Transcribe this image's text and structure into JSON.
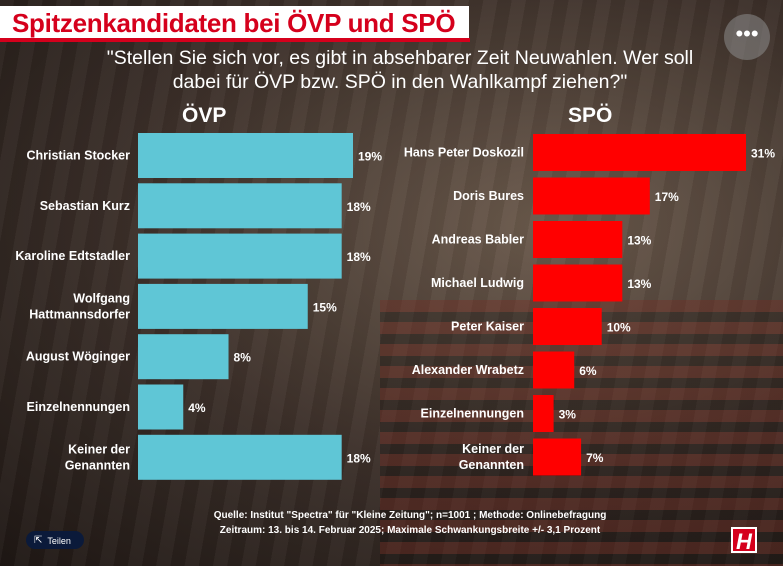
{
  "title": "Spitzenkandidaten bei ÖVP und SPÖ",
  "question_line1": "\"Stellen Sie sich vor, es gibt in absehbarer Zeit Neuwahlen. Wer soll",
  "question_line2": "dabei für ÖVP bzw. SPÖ in den Wahlkampf ziehen?\"",
  "source_line1": "Quelle:  Institut \"Spectra\" für \"Kleine Zeitung\"; n=1001 ; Methode: Onlinebefragung",
  "source_line2": "Zeitraum: 13. bis 14. Februar 2025; Maximale Schwankungsbreite +/- 3,1 Prozent",
  "share_label": "Teilen",
  "more_icon": "more-icon",
  "logo_letter": "H",
  "colors": {
    "oevp": "#5fc6d6",
    "spoe": "#ff0000",
    "title_red": "#d5001c"
  },
  "chart_data": [
    {
      "type": "bar",
      "orientation": "horizontal",
      "title": "ÖVP",
      "categories": [
        "Christian Stocker",
        "Sebastian Kurz",
        "Karoline Edtstadler",
        "Wolfgang Hattmannsdorfer",
        "August Wöginger",
        "Einzelnennungen",
        "Keiner der Genannten"
      ],
      "category_lines": [
        [
          "Christian Stocker"
        ],
        [
          "Sebastian Kurz"
        ],
        [
          "Karoline Edtstadler"
        ],
        [
          "Wolfgang",
          "Hattmannsdorfer"
        ],
        [
          "August Wöginger"
        ],
        [
          "Einzelnennungen"
        ],
        [
          "Keiner der",
          "Genannten"
        ]
      ],
      "values": [
        19,
        18,
        18,
        15,
        8,
        4,
        18
      ],
      "value_labels": [
        "19%",
        "18%",
        "18%",
        "15%",
        "8%",
        "4%",
        "18%"
      ],
      "color": "#5fc6d6"
    },
    {
      "type": "bar",
      "orientation": "horizontal",
      "title": "SPÖ",
      "categories": [
        "Hans Peter Doskozil",
        "Doris Bures",
        "Andreas Babler",
        "Michael Ludwig",
        "Peter Kaiser",
        "Alexander Wrabetz",
        "Einzelnennungen",
        "Keiner der Genannten"
      ],
      "category_lines": [
        [
          "Hans Peter Doskozil"
        ],
        [
          "Doris Bures"
        ],
        [
          "Andreas Babler"
        ],
        [
          "Michael Ludwig"
        ],
        [
          "Peter Kaiser"
        ],
        [
          "Alexander Wrabetz"
        ],
        [
          "Einzelnennungen"
        ],
        [
          "Keiner der",
          "Genannten"
        ]
      ],
      "values": [
        31,
        17,
        13,
        13,
        10,
        6,
        3,
        7
      ],
      "value_labels": [
        "31%",
        "17%",
        "13%",
        "13%",
        "10%",
        "6%",
        "3%",
        "7%"
      ],
      "color": "#ff0000"
    }
  ]
}
